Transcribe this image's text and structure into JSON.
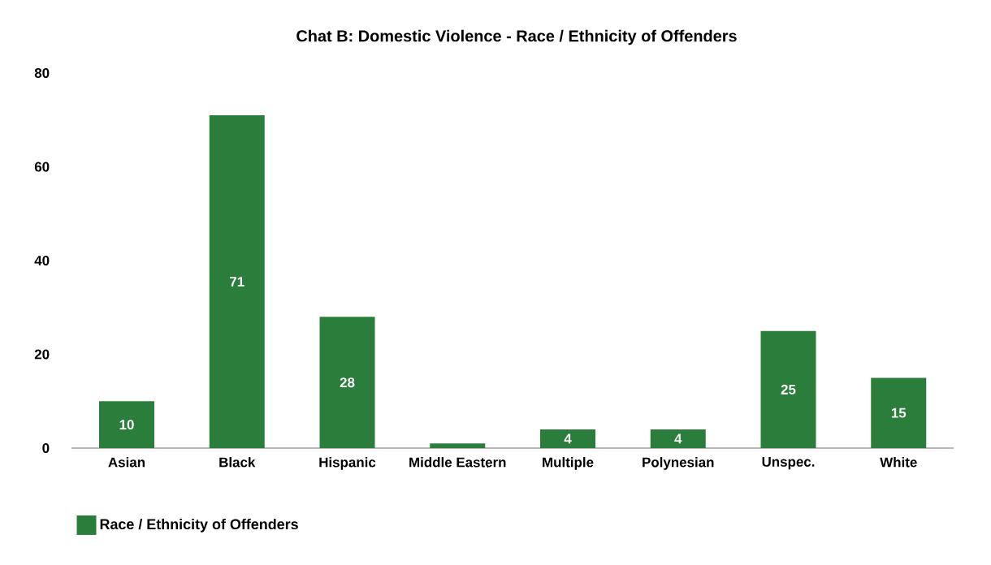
{
  "chart_data": {
    "type": "bar",
    "title": "Chat B:  Domestic Violence - Race / Ethnicity of Offenders",
    "categories": [
      "Asian",
      "Black",
      "Hispanic",
      "Middle Eastern",
      "Multiple",
      "Polynesian",
      "Unspec.",
      "White"
    ],
    "series": [
      {
        "name": "Race / Ethnicity of Offenders",
        "color": "#2b7d3b",
        "values": [
          10,
          71,
          28,
          1,
          4,
          4,
          25,
          15
        ],
        "value_labels": [
          "10",
          "71",
          "28",
          null,
          "4",
          "4",
          "25",
          "15"
        ]
      }
    ],
    "ylim": [
      0,
      80
    ],
    "yticks": [
      0,
      20,
      40,
      60,
      80
    ],
    "grid": false,
    "legend": "bottom left"
  }
}
